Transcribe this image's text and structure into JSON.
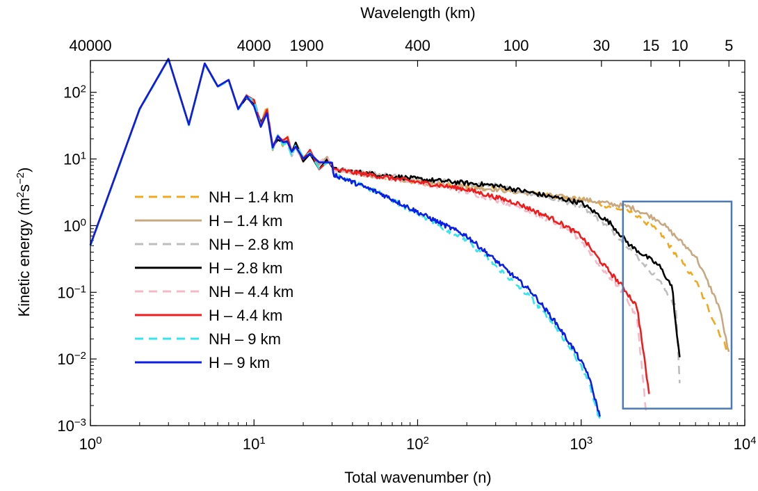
{
  "chart_data": {
    "type": "line",
    "xscale": "log",
    "yscale": "log",
    "xlabel": "Total wavenumber (n)",
    "ylabel_main": "Kinetic energy (m",
    "ylabel_sup1": "2",
    "ylabel_mid": "s",
    "ylabel_sup2": "−2",
    "ylabel_end": ")",
    "top_axis_title": "Wavelength (km)",
    "xlim": [
      1,
      10000
    ],
    "ylim": [
      0.001,
      300
    ],
    "x_ticks": [
      {
        "value": 1,
        "base": "10",
        "exp": "0"
      },
      {
        "value": 10,
        "base": "10",
        "exp": "1"
      },
      {
        "value": 100,
        "base": "10",
        "exp": "2"
      },
      {
        "value": 1000,
        "base": "10",
        "exp": "3"
      },
      {
        "value": 10000,
        "base": "10",
        "exp": "4"
      }
    ],
    "y_ticks": [
      {
        "value": 100,
        "base": "10",
        "exp": "2"
      },
      {
        "value": 10,
        "base": "10",
        "exp": "1"
      },
      {
        "value": 1,
        "base": "10",
        "exp": "0"
      },
      {
        "value": 0.1,
        "base": "10",
        "exp": "−1"
      },
      {
        "value": 0.01,
        "base": "10",
        "exp": "−2"
      },
      {
        "value": 0.001,
        "base": "10",
        "exp": "−3"
      }
    ],
    "top_ticks": [
      {
        "label": "40000",
        "n": 1
      },
      {
        "label": "4000",
        "n": 10
      },
      {
        "label": "1900",
        "n": 21
      },
      {
        "label": "400",
        "n": 100
      },
      {
        "label": "100",
        "n": 400
      },
      {
        "label": "30",
        "n": 1330
      },
      {
        "label": "15",
        "n": 2670
      },
      {
        "label": "10",
        "n": 4000
      },
      {
        "label": "5",
        "n": 8000
      }
    ],
    "highlight_box": {
      "x": [
        1800,
        8300
      ],
      "y": [
        0.0018,
        2.3
      ],
      "color": "#4a7ab5"
    },
    "low_n_profile": {
      "x": [
        1,
        2,
        3,
        4,
        5,
        6,
        7,
        8,
        9,
        10,
        11,
        12,
        13,
        14,
        15,
        16,
        17,
        18,
        20,
        22,
        25,
        28,
        30
      ],
      "y": [
        0.5,
        55,
        310,
        32,
        265,
        120,
        150,
        55,
        85,
        70,
        33,
        55,
        15,
        20,
        17,
        20,
        12,
        16,
        10,
        13,
        8,
        10,
        8
      ]
    },
    "series": [
      {
        "name": "NH – 1.4 km",
        "color": "#f2a81d",
        "dash": "12,8",
        "x": [
          30,
          100,
          300,
          1000,
          2000,
          3000,
          5000,
          8000
        ],
        "y": [
          7,
          4.5,
          3.5,
          2.5,
          1.6,
          0.8,
          0.15,
          0.012
        ]
      },
      {
        "name": "H – 1.4 km",
        "color": "#c9a880",
        "dash": "",
        "x": [
          30,
          100,
          300,
          1000,
          2000,
          3000,
          5000,
          7000,
          8000
        ],
        "y": [
          7,
          4.5,
          3.5,
          2.5,
          1.9,
          1.2,
          0.35,
          0.06,
          0.012
        ]
      },
      {
        "name": "NH – 2.8 km",
        "color": "#bdbdbd",
        "dash": "12,8",
        "x": [
          30,
          100,
          300,
          1000,
          1500,
          2000,
          3000,
          3800,
          4000
        ],
        "y": [
          7,
          5,
          4,
          2,
          0.9,
          0.45,
          0.15,
          0.06,
          0.004
        ]
      },
      {
        "name": "H – 2.8 km",
        "color": "#000000",
        "dash": "",
        "x": [
          30,
          100,
          300,
          1000,
          1500,
          2000,
          3000,
          3600,
          3800,
          4000
        ],
        "y": [
          7,
          5,
          4,
          2.2,
          1.1,
          0.5,
          0.25,
          0.12,
          0.03,
          0.01
        ]
      },
      {
        "name": "NH – 4.4 km",
        "color": "#f5b8c6",
        "dash": "12,8",
        "x": [
          30,
          100,
          200,
          400,
          700,
          1000,
          1300,
          1800,
          2200,
          2500
        ],
        "y": [
          7,
          4.5,
          3.2,
          2,
          1.1,
          0.6,
          0.25,
          0.1,
          0.04,
          0.0015
        ]
      },
      {
        "name": "H – 4.4 km",
        "color": "#ee1c1c",
        "dash": "",
        "x": [
          30,
          100,
          200,
          400,
          700,
          1000,
          1300,
          1800,
          2200,
          2600
        ],
        "y": [
          7,
          4.5,
          3.5,
          2.2,
          1.2,
          0.7,
          0.3,
          0.12,
          0.06,
          0.003
        ]
      },
      {
        "name": "NH – 9 km",
        "color": "#32e6ee",
        "dash": "12,8",
        "x": [
          30,
          60,
          100,
          200,
          300,
          500,
          700,
          900,
          1100,
          1300
        ],
        "y": [
          6,
          3,
          1.5,
          0.6,
          0.25,
          0.08,
          0.03,
          0.012,
          0.005,
          0.0012
        ]
      },
      {
        "name": "H – 9 km",
        "color": "#0a1ee6",
        "dash": "",
        "x": [
          30,
          60,
          100,
          200,
          300,
          500,
          700,
          900,
          1100,
          1300
        ],
        "y": [
          6,
          3,
          1.6,
          0.7,
          0.3,
          0.1,
          0.035,
          0.014,
          0.006,
          0.0014
        ]
      }
    ]
  }
}
